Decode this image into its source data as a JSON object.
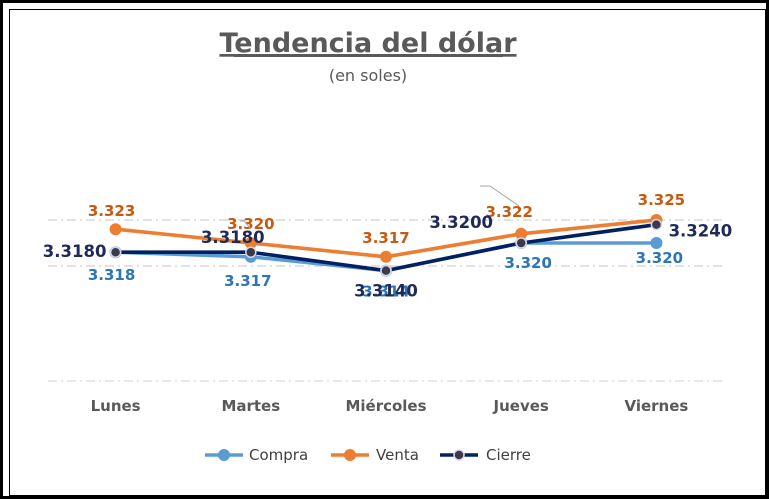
{
  "chart_data": {
    "type": "line",
    "title": "Tendencia del dólar",
    "subtitle": "(en soles)",
    "categories": [
      "Lunes",
      "Martes",
      "Miércoles",
      "Jueves",
      "Viernes"
    ],
    "series": [
      {
        "name": "Compra",
        "color": "#5B9BD5",
        "values": [
          3.318,
          3.317,
          3.314,
          3.32,
          3.32
        ],
        "labels": [
          "3.318",
          "3.317",
          "3.314",
          "3.320",
          "3.320"
        ]
      },
      {
        "name": "Venta",
        "color": "#ED7D31",
        "values": [
          3.323,
          3.32,
          3.317,
          3.322,
          3.325
        ],
        "labels": [
          "3.323",
          "3.320",
          "3.317",
          "3.322",
          "3.325"
        ]
      },
      {
        "name": "Cierre",
        "color": "#002060",
        "values": [
          3.318,
          3.318,
          3.314,
          3.32,
          3.324
        ],
        "labels": [
          "3.3180",
          "3.3180",
          "3.3140",
          "3.3200",
          "3.3240"
        ]
      }
    ],
    "ylim": [
      3.308,
      3.326
    ],
    "gridlines": [
      3.325,
      3.315
    ],
    "grid": true,
    "legend": "bottom",
    "xlabel": "",
    "ylabel": ""
  }
}
